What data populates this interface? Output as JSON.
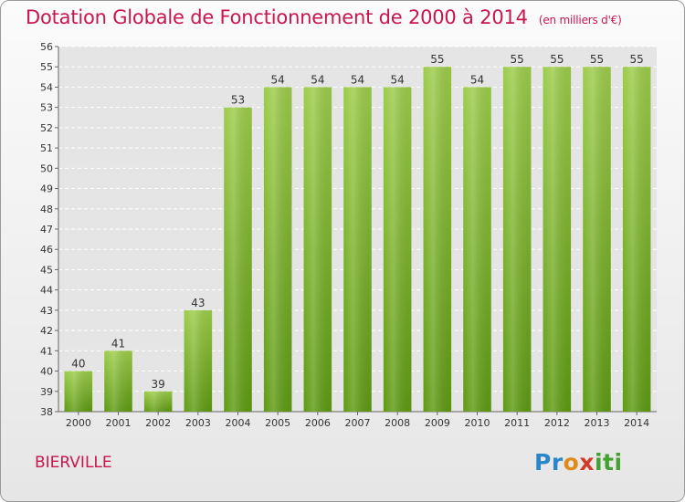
{
  "title": "Dotation Globale de Fonctionnement de 2000 à 2014",
  "subtitle": "(en milliers d'€)",
  "commune": "BIERVILLE",
  "logo": {
    "p1": "Pr",
    "p2": "o",
    "p3": "x",
    "p4": "iti"
  },
  "colors": {
    "bar_top": "#9ccc4a",
    "bar_bottom": "#5e9a12",
    "title": "#c8164f",
    "plot_bg": "#e5e5e5"
  },
  "chart_data": {
    "type": "bar",
    "title": "Dotation Globale de Fonctionnement de 2000 à 2014",
    "subtitle": "(en milliers d'€)",
    "categories": [
      "2000",
      "2001",
      "2002",
      "2003",
      "2004",
      "2005",
      "2006",
      "2007",
      "2008",
      "2009",
      "2010",
      "2011",
      "2012",
      "2013",
      "2014"
    ],
    "values": [
      40,
      41,
      39,
      43,
      53,
      54,
      54,
      54,
      54,
      55,
      54,
      55,
      55,
      55,
      55
    ],
    "ylim": [
      38,
      56
    ],
    "yticks": [
      38,
      39,
      40,
      41,
      42,
      43,
      44,
      45,
      46,
      47,
      48,
      49,
      50,
      51,
      52,
      53,
      54,
      55,
      56
    ],
    "grid": true,
    "xlabel": "",
    "ylabel": ""
  }
}
